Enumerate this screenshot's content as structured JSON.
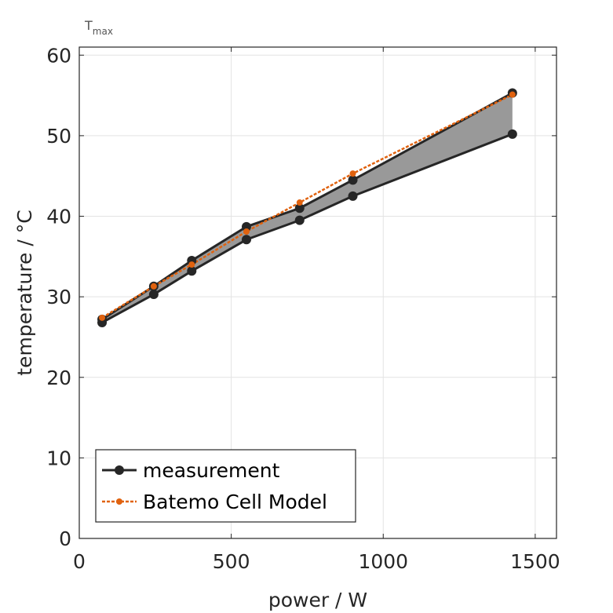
{
  "chart_data": {
    "type": "line",
    "title": "T",
    "title_subscript": "max",
    "xlabel": "power / W",
    "ylabel": "temperature / °C",
    "xlim": [
      0,
      1570
    ],
    "ylim": [
      0,
      61
    ],
    "x_ticks": [
      0,
      500,
      1000,
      1500
    ],
    "x_tick_labels": [
      "0",
      "500",
      "1000",
      "1500"
    ],
    "y_ticks": [
      0,
      10,
      20,
      30,
      40,
      50,
      60
    ],
    "y_tick_labels": [
      "0",
      "10",
      "20",
      "30",
      "40",
      "50",
      "60"
    ],
    "grid": true,
    "legend_position": "bottom-left",
    "series": [
      {
        "name": "measurement",
        "role": "measurement-upper",
        "color": "#262626",
        "x": [
          75,
          245,
          370,
          550,
          725,
          900,
          1425
        ],
        "y": [
          27.2,
          31.3,
          34.5,
          38.7,
          41.0,
          44.5,
          55.3
        ]
      },
      {
        "role": "measurement-lower",
        "color": "#262626",
        "x": [
          75,
          245,
          370,
          550,
          725,
          900,
          1425
        ],
        "y": [
          26.8,
          30.3,
          33.2,
          37.1,
          39.5,
          42.5,
          50.2
        ]
      },
      {
        "name": "Batemo Cell Model",
        "role": "model",
        "color": "#e0620f",
        "x": [
          75,
          245,
          370,
          550,
          725,
          900,
          1425
        ],
        "y": [
          27.4,
          31.3,
          34.0,
          38.1,
          41.7,
          45.3,
          55.1
        ]
      }
    ],
    "band_fill_color": "#999999"
  }
}
